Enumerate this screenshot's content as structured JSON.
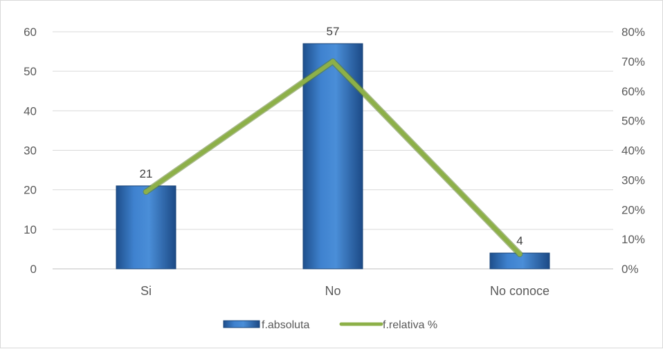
{
  "chart_data": {
    "type": "bar",
    "categories": [
      "Si",
      "No",
      "No conoce"
    ],
    "series": [
      {
        "name": "f.absoluta",
        "type": "bar",
        "axis": "left",
        "values": [
          21,
          57,
          4
        ]
      },
      {
        "name": "f.relativa %",
        "type": "line",
        "axis": "right",
        "values": [
          0.26,
          0.7,
          0.05
        ]
      }
    ],
    "ylim": [
      0,
      60
    ],
    "y_ticks": [
      "0",
      "10",
      "20",
      "30",
      "40",
      "50",
      "60"
    ],
    "y2lim": [
      0,
      0.8
    ],
    "y2_ticks": [
      "0%",
      "10%",
      "20%",
      "30%",
      "40%",
      "50%",
      "60%",
      "70%",
      "80%"
    ],
    "data_labels": [
      "21",
      "57",
      "4"
    ],
    "grid": true,
    "legend_position": "bottom",
    "colors": {
      "bar": "#2e6fbd",
      "line": "#8db048"
    }
  }
}
